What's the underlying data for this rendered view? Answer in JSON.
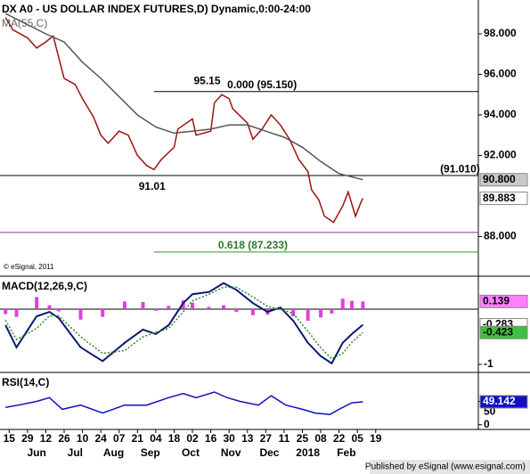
{
  "x_axis": {
    "xlim": [
      -0.5,
      25.6
    ],
    "xticks": [
      {
        "value": 0,
        "label": "15"
      },
      {
        "value": 1,
        "label": "29"
      },
      {
        "value": 2,
        "label": "12"
      },
      {
        "value": 3,
        "label": "26"
      },
      {
        "value": 4,
        "label": "10"
      },
      {
        "value": 5,
        "label": "24"
      },
      {
        "value": 6,
        "label": "07"
      },
      {
        "value": 7,
        "label": "21"
      },
      {
        "value": 8,
        "label": "04"
      },
      {
        "value": 9,
        "label": "18"
      },
      {
        "value": 10,
        "label": "02"
      },
      {
        "value": 11,
        "label": "16"
      },
      {
        "value": 12,
        "label": "30"
      },
      {
        "value": 13,
        "label": "13"
      },
      {
        "value": 14,
        "label": "27"
      },
      {
        "value": 15,
        "label": "11"
      },
      {
        "value": 16,
        "label": "25"
      },
      {
        "value": 17,
        "label": "08"
      },
      {
        "value": 18,
        "label": "22"
      },
      {
        "value": 19,
        "label": "05"
      },
      {
        "value": 20,
        "label": "19"
      }
    ],
    "months": [
      {
        "value": 1.5,
        "label": "Jun"
      },
      {
        "value": 3.6,
        "label": "Jul"
      },
      {
        "value": 5.7,
        "label": "Aug"
      },
      {
        "value": 7.7,
        "label": "Sep"
      },
      {
        "value": 9.9,
        "label": "Oct"
      },
      {
        "value": 12.1,
        "label": "Nov"
      },
      {
        "value": 14.2,
        "label": "Dec"
      },
      {
        "value": 16.3,
        "label": "2018"
      },
      {
        "value": 18.4,
        "label": "Feb"
      }
    ]
  },
  "chart_data": [
    {
      "type": "line",
      "title": "DX A0 - US DOLLAR INDEX FUTURES,D) Dynamic,0:00-24:00",
      "subtitle": "MA(55,C)",
      "watermark": "© eSignal, 2011",
      "ylim": [
        86.04,
        99.67
      ],
      "yticks": [
        {
          "value": 88,
          "label": "88.000"
        },
        {
          "value": 92,
          "label": "92.000"
        },
        {
          "value": 94,
          "label": "94.000"
        },
        {
          "value": 96,
          "label": "96.000"
        },
        {
          "value": 98,
          "label": "98.000"
        }
      ],
      "levels": [
        {
          "value": 95.15,
          "from": 7.9,
          "color": "#000000"
        },
        {
          "value": 91.01,
          "from": -0.5,
          "color": "#000000"
        },
        {
          "value": 87.233,
          "from": 7.9,
          "color": "#2a9a2a"
        },
        {
          "value": 88.2,
          "from": -0.5,
          "color": "#8a3a8a"
        }
      ],
      "annotations": [
        {
          "text": "95.15",
          "x": 10.8,
          "y": 95.65
        },
        {
          "text": "0.000 (95.150)",
          "x": 13.8,
          "y": 95.45
        },
        {
          "text": "91.01",
          "x": 7.8,
          "y": 90.45
        },
        {
          "text": "(91.010)",
          "x": 24.6,
          "y": 91.3
        },
        {
          "text": "0.618 (87.233)",
          "x": 13.3,
          "y": 87.55
        }
      ],
      "series": [
        {
          "name": "DX A0",
          "color": "#a01010",
          "box": "#ffffff",
          "box_text": "#000000",
          "x": [
            -0.2,
            0.2,
            1,
            1.5,
            2,
            2.4,
            3,
            3.6,
            4,
            4.6,
            5,
            5.4,
            6,
            6.5,
            7,
            7.5,
            7.9,
            8.3,
            9,
            9.2,
            10,
            10.2,
            11,
            11.2,
            11.6,
            12,
            12.2,
            13,
            13.3,
            13.8,
            14.3,
            14.8,
            15.3,
            15.8,
            16.3,
            16.5,
            16.9,
            17.2,
            17.7,
            18.2,
            18.5,
            18.9,
            19.2,
            19.3
          ],
          "values": [
            98.8,
            98.2,
            97.8,
            97.3,
            97.6,
            97.9,
            95.8,
            95.5,
            94.8,
            93.9,
            93.0,
            92.6,
            93.2,
            93.0,
            92.0,
            91.5,
            91.3,
            91.8,
            92.4,
            93.3,
            93.8,
            93.0,
            93.2,
            94.6,
            95.0,
            94.8,
            94.3,
            93.6,
            92.8,
            93.3,
            94.0,
            93.5,
            92.8,
            91.8,
            91.2,
            90.3,
            89.8,
            89.0,
            88.7,
            89.5,
            90.2,
            89.0,
            89.7,
            89.883
          ]
        },
        {
          "name": "MA(55,C)",
          "color": "#555555",
          "box": "#c8c8c8",
          "box_text": "#000000",
          "x": [
            -0.2,
            2,
            3,
            4,
            5,
            6,
            7,
            8,
            9,
            10,
            11,
            12,
            13,
            14,
            15,
            16,
            17,
            18,
            19.3
          ],
          "values": [
            99.0,
            98.0,
            97.6,
            96.6,
            95.8,
            94.9,
            94.0,
            93.4,
            93.1,
            93.2,
            93.3,
            93.5,
            93.5,
            93.2,
            92.9,
            92.4,
            91.7,
            91.1,
            90.8
          ],
          "value_labels": [
            null,
            null,
            null,
            null,
            null,
            null,
            null,
            null,
            null,
            null,
            null,
            null,
            null,
            null,
            null,
            null,
            null,
            null,
            "90.800"
          ]
        }
      ]
    },
    {
      "type": "line",
      "title": "MACD(12,26,9,C)",
      "ylim": [
        -1.145,
        0.58
      ],
      "yticks": [
        -1
      ],
      "zero_line": true,
      "series": [
        {
          "name": "Histogram",
          "style": "bar",
          "color": "#e040e0",
          "box": "#ff80ff",
          "box_text": "#000000",
          "x": [
            -0.2,
            0.4,
            1.5,
            2.2,
            2.7,
            3.9,
            5.1,
            6.3,
            7.3,
            8,
            8.7,
            9.5,
            10,
            10.9,
            11.7,
            12.4,
            13.3,
            14.1,
            14.8,
            15.5,
            16.3,
            17,
            17.6,
            18.2,
            18.7,
            19.3
          ],
          "values": [
            -0.09,
            -0.14,
            0.22,
            0.07,
            -0.04,
            -0.19,
            -0.14,
            0.14,
            0.13,
            -0.03,
            0.06,
            0.16,
            0.12,
            0.04,
            0.07,
            -0.05,
            -0.11,
            -0.1,
            0.03,
            -0.13,
            -0.21,
            -0.15,
            -0.08,
            0.19,
            0.15,
            0.139
          ]
        },
        {
          "name": "MACD",
          "color": "#0a1a6e",
          "width": 2,
          "box": "#ffffff",
          "box_text": "#000000",
          "x": [
            -0.2,
            0.4,
            1.5,
            2.2,
            2.7,
            3.9,
            5.1,
            6.3,
            7.3,
            8,
            8.7,
            9.5,
            10,
            10.9,
            11.7,
            12.4,
            13.3,
            14.1,
            14.8,
            15.5,
            16.3,
            17,
            17.6,
            18.2,
            18.7,
            19.3
          ],
          "values": [
            -0.29,
            -0.69,
            -0.13,
            -0.05,
            -0.16,
            -0.69,
            -0.94,
            -0.61,
            -0.37,
            -0.45,
            -0.29,
            0.11,
            0.27,
            0.31,
            0.47,
            0.35,
            0.11,
            -0.05,
            0.03,
            -0.21,
            -0.61,
            -0.85,
            -0.98,
            -0.61,
            -0.45,
            -0.283
          ]
        },
        {
          "name": "Signal",
          "style": "dash",
          "color": "#2a8a2a",
          "box": "#40c040",
          "box_text": "#000000",
          "x": [
            -0.2,
            0.4,
            1.5,
            2.2,
            2.7,
            3.9,
            5.1,
            6.3,
            7.3,
            8,
            8.7,
            9.5,
            10,
            10.9,
            11.7,
            12.4,
            13.3,
            14.1,
            14.8,
            15.5,
            16.3,
            17,
            17.6,
            18.2,
            18.7,
            19.3
          ],
          "values": [
            -0.2,
            -0.55,
            -0.35,
            -0.12,
            -0.12,
            -0.5,
            -0.8,
            -0.75,
            -0.5,
            -0.42,
            -0.35,
            -0.05,
            0.15,
            0.27,
            0.4,
            0.4,
            0.22,
            0.05,
            0.0,
            -0.08,
            -0.4,
            -0.7,
            -0.9,
            -0.8,
            -0.6,
            -0.423
          ]
        }
      ]
    },
    {
      "type": "line",
      "title": "RSI(14,C)",
      "ylim": [
        -10,
        110
      ],
      "yticks": [
        0,
        50
      ],
      "series": [
        {
          "name": "RSI",
          "color": "#1010c0",
          "box": "#1010c0",
          "box_text": "#ffffff",
          "x": [
            -0.2,
            0.5,
            1.5,
            2.2,
            2.9,
            3.9,
            5.1,
            6.3,
            7.5,
            8.7,
            9.5,
            10.2,
            11.2,
            11.9,
            12.6,
            13.6,
            14.3,
            15.1,
            16,
            16.7,
            17.5,
            18,
            18.7,
            19.3
          ],
          "values": [
            37,
            42,
            50,
            58,
            33,
            42,
            25,
            42,
            42,
            58,
            67,
            58,
            70,
            58,
            50,
            42,
            62,
            42,
            33,
            25,
            22,
            33,
            47,
            49.142
          ]
        }
      ]
    }
  ],
  "footer": "Published by eSignal (www.esignal.com)"
}
